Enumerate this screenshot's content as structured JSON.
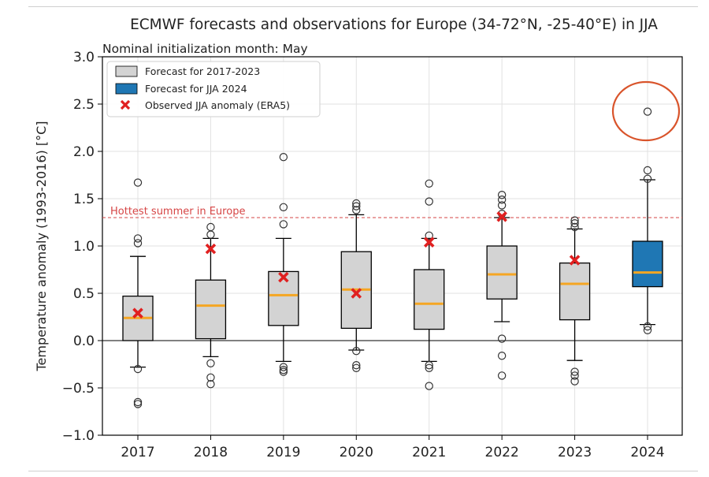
{
  "chart_data": {
    "type": "boxplot",
    "title": "ECMWF forecasts and observations for Europe (34-72°N, -25-40°E) in JJA",
    "subtitle": "Nominal initialization month: May",
    "xlabel": "",
    "ylabel": "Temperature anomaly (1993-2016) [°C]",
    "ylim": [
      -1.0,
      3.0
    ],
    "yticks": [
      "3.0",
      "2.5",
      "2.0",
      "1.5",
      "1.0",
      "0.5",
      "0.0",
      "−0.5",
      "−1.0"
    ],
    "ytick_values": [
      3.0,
      2.5,
      2.0,
      1.5,
      1.0,
      0.5,
      0.0,
      -0.5,
      -1.0
    ],
    "grid": true,
    "legend_position": "top-left",
    "legend": [
      {
        "label": "Forecast for 2017-2023",
        "color": "#d3d3d3"
      },
      {
        "label": "Forecast for JJA 2024",
        "color": "#1f77b4"
      },
      {
        "label": "Observed JJA anomaly (ERA5)",
        "color": "#e02020"
      }
    ],
    "reference_line": {
      "label": "Hottest summer in Europe",
      "value": 1.3,
      "color": "#d64545"
    },
    "zero_line": 0.0,
    "boxes": [
      {
        "year": "2017",
        "q1": 0.0,
        "median": 0.24,
        "q3": 0.47,
        "whisker_low": -0.28,
        "whisker_high": 0.89,
        "outliers": [
          1.67,
          1.08,
          1.03,
          -0.3,
          -0.65,
          -0.67
        ],
        "observed": 0.29,
        "highlight": false
      },
      {
        "year": "2018",
        "q1": 0.02,
        "median": 0.37,
        "q3": 0.64,
        "whisker_low": -0.17,
        "whisker_high": 1.08,
        "outliers": [
          1.2,
          1.12,
          -0.24,
          -0.39,
          -0.46
        ],
        "observed": 0.97,
        "highlight": false
      },
      {
        "year": "2019",
        "q1": 0.16,
        "median": 0.48,
        "q3": 0.73,
        "whisker_low": -0.22,
        "whisker_high": 1.08,
        "outliers": [
          1.94,
          1.41,
          1.23,
          -0.28,
          -0.31,
          -0.33
        ],
        "observed": 0.67,
        "highlight": false
      },
      {
        "year": "2020",
        "q1": 0.13,
        "median": 0.54,
        "q3": 0.94,
        "whisker_low": -0.1,
        "whisker_high": 1.33,
        "outliers": [
          1.45,
          1.42,
          1.38,
          -0.11,
          -0.26,
          -0.29
        ],
        "observed": 0.5,
        "highlight": false
      },
      {
        "year": "2021",
        "q1": 0.12,
        "median": 0.39,
        "q3": 0.75,
        "whisker_low": -0.22,
        "whisker_high": 1.08,
        "outliers": [
          1.66,
          1.47,
          1.11,
          -0.26,
          -0.29,
          -0.48
        ],
        "observed": 1.04,
        "highlight": false
      },
      {
        "year": "2022",
        "q1": 0.44,
        "median": 0.7,
        "q3": 1.0,
        "whisker_low": 0.2,
        "whisker_high": 1.3,
        "outliers": [
          1.54,
          1.49,
          1.43,
          1.34,
          0.02,
          -0.16,
          -0.37
        ],
        "observed": 1.31,
        "highlight": false
      },
      {
        "year": "2023",
        "q1": 0.22,
        "median": 0.6,
        "q3": 0.82,
        "whisker_low": -0.21,
        "whisker_high": 1.18,
        "outliers": [
          1.27,
          1.24,
          1.2,
          -0.33,
          -0.37,
          -0.43
        ],
        "observed": 0.85,
        "highlight": false
      },
      {
        "year": "2024",
        "q1": 0.57,
        "median": 0.72,
        "q3": 1.05,
        "whisker_low": 0.17,
        "whisker_high": 1.7,
        "outliers": [
          2.42,
          1.8,
          1.71,
          0.15,
          0.11
        ],
        "observed": null,
        "highlight": true
      }
    ],
    "colors": {
      "box_fill": "#d3d3d3",
      "box_fill_2024": "#1f77b4",
      "median": "#f5a623",
      "marker": "#e02020",
      "annotation_circle": "#d9542b",
      "grid": "#e2e2e2"
    }
  }
}
